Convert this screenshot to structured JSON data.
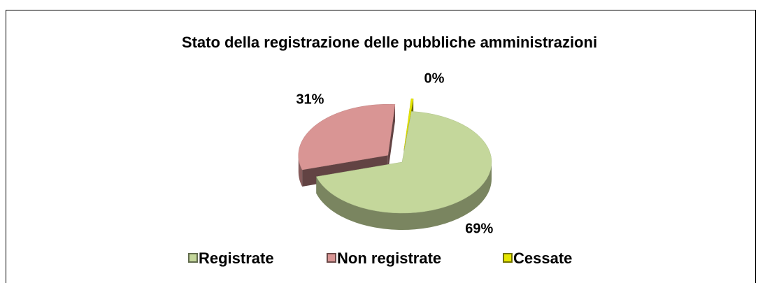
{
  "chart_data": {
    "type": "pie3d",
    "title": "Stato della registrazione delle pubbliche amministrazioni",
    "categories": [
      "Registrate",
      "Non registrate",
      "Cessate"
    ],
    "values": [
      69,
      31,
      0.4
    ],
    "value_labels": [
      "69%",
      "31%",
      "0%"
    ],
    "colors": [
      "#c4d79b",
      "#d99594",
      "#e6e600"
    ],
    "legend": "bottom"
  }
}
